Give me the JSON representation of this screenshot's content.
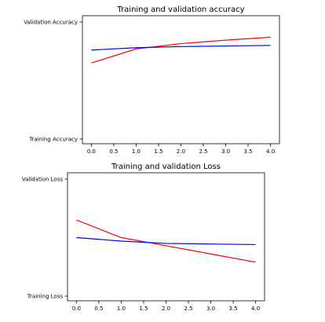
{
  "chart_data": [
    {
      "type": "line",
      "title": "Training and validation accuracy",
      "x": [
        0,
        1,
        2,
        3,
        4
      ],
      "xlim": [
        -0.2,
        4.2
      ],
      "ylim": [
        0,
        1
      ],
      "x_ticks": [
        {
          "value": 0.0,
          "label": "0.0"
        },
        {
          "value": 0.5,
          "label": "0.5"
        },
        {
          "value": 1.0,
          "label": "1.0"
        },
        {
          "value": 1.5,
          "label": "1.5"
        },
        {
          "value": 2.0,
          "label": "2.0"
        },
        {
          "value": 2.5,
          "label": "2.5"
        },
        {
          "value": 3.0,
          "label": "3.0"
        },
        {
          "value": 3.5,
          "label": "3.5"
        },
        {
          "value": 4.0,
          "label": "4.0"
        }
      ],
      "y_ticks": [
        {
          "value": 1,
          "label": "Validation Accuracy"
        },
        {
          "value": 0,
          "label": "Training Accuracy"
        }
      ],
      "series": [
        {
          "color": "#ff0000",
          "values": [
            0.65,
            0.77,
            0.815,
            0.845,
            0.87
          ]
        },
        {
          "color": "#0000ff",
          "values": [
            0.76,
            0.78,
            0.79,
            0.795,
            0.8
          ]
        }
      ],
      "grid": false
    },
    {
      "type": "line",
      "title": "Training and validation Loss",
      "x": [
        0,
        1,
        2,
        3,
        4
      ],
      "xlim": [
        -0.2,
        4.2
      ],
      "ylim": [
        0,
        1
      ],
      "x_ticks": [
        {
          "value": 0.0,
          "label": "0.0"
        },
        {
          "value": 0.5,
          "label": "0.5"
        },
        {
          "value": 1.0,
          "label": "1.0"
        },
        {
          "value": 1.5,
          "label": "1.5"
        },
        {
          "value": 2.0,
          "label": "2.0"
        },
        {
          "value": 2.5,
          "label": "2.5"
        },
        {
          "value": 3.0,
          "label": "3.0"
        },
        {
          "value": 3.5,
          "label": "3.5"
        },
        {
          "value": 4.0,
          "label": "4.0"
        }
      ],
      "y_ticks": [
        {
          "value": 1,
          "label": "Validation Loss"
        },
        {
          "value": 0,
          "label": "Training Loss"
        }
      ],
      "series": [
        {
          "color": "#ff0000",
          "values": [
            0.65,
            0.5,
            0.43,
            0.36,
            0.29
          ]
        },
        {
          "color": "#0000ff",
          "values": [
            0.5,
            0.47,
            0.45,
            0.445,
            0.44
          ]
        }
      ],
      "grid": false
    }
  ]
}
